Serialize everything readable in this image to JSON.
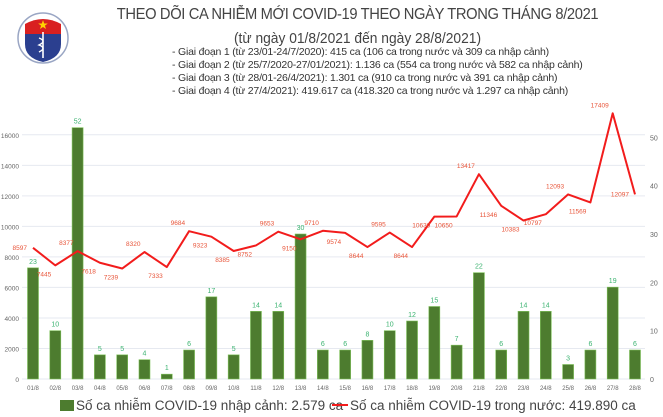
{
  "header": {
    "title": "THEO DÕI CA NHIỄM MỚI COVID-19 THEO NGÀY TRONG THÁNG 8/2021",
    "subtitle": "(từ ngày 01/8/2021 đến ngày 28/8/2021)",
    "phases": [
      "- Giai đoạn 1 (từ 23/01-24/7/2020): 415 ca (106 ca trong nước và 309 ca nhập cảnh)",
      "- Giai đoạn 2 (từ 25/7/2020-27/01/2021): 1.136 ca (554 ca trong nước và 582 ca nhập cảnh)",
      "- Giai đoạn 3 (từ 28/01-26/4/2021): 1.301 ca (910 ca trong nước và 391 ca nhập cảnh)",
      "- Giai đoạn 4 (từ 27/4/2021): 419.617 ca (418.320 ca trong nước và 1.297 ca nhập cảnh)"
    ]
  },
  "logo": {
    "text": "BỘ Y TẾ",
    "subtext": "MINISTRY OF HEALTH"
  },
  "chart_data": {
    "type": "bar+line",
    "categories": [
      "01/8",
      "02/8",
      "03/8",
      "04/8",
      "05/8",
      "06/8",
      "07/8",
      "08/8",
      "09/8",
      "10/8",
      "11/8",
      "12/8",
      "13/8",
      "14/8",
      "15/8",
      "16/8",
      "17/8",
      "18/8",
      "19/8",
      "20/8",
      "21/8",
      "22/8",
      "23/8",
      "24/8",
      "25/8",
      "26/8",
      "27/8",
      "28/8"
    ],
    "series": [
      {
        "name": "Số ca nhiễm COVID-19 nhập cảnh: 2.579 ca",
        "type": "bar",
        "axis": "right",
        "color": "#4d7c2f",
        "label_color": "#3cb371",
        "values": [
          23,
          10,
          52,
          5,
          5,
          4,
          1,
          6,
          17,
          5,
          14,
          14,
          30,
          6,
          6,
          8,
          10,
          12,
          15,
          7,
          22,
          6,
          14,
          14,
          3,
          6,
          19,
          6
        ]
      },
      {
        "name": "Số ca nhiễm COVID-19 trong nước: 419.890 ca",
        "type": "line",
        "axis": "left",
        "color": "#f21c1c",
        "label_color": "#e8553a",
        "values": [
          8597,
          7445,
          8377,
          7618,
          7239,
          8320,
          7333,
          9684,
          9323,
          8385,
          8752,
          9653,
          9150,
          9710,
          9574,
          8644,
          9595,
          8644,
          10639,
          10650,
          13417,
          11346,
          10383,
          10797,
          12093,
          11569,
          17409,
          12097
        ]
      }
    ],
    "left_axis": {
      "ticks": [
        0,
        2000,
        4000,
        6000,
        8000,
        10000,
        12000,
        14000,
        16000
      ],
      "range": [
        0,
        19000
      ]
    },
    "right_axis": {
      "ticks": [
        0,
        10,
        20,
        30,
        40,
        50
      ],
      "range": [
        0,
        60
      ]
    },
    "grid": true,
    "legend_position": "bottom"
  }
}
